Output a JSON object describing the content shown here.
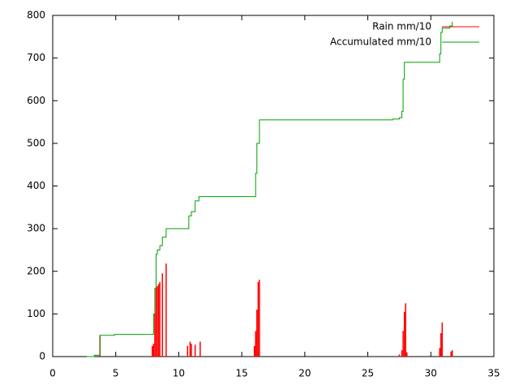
{
  "chart_data": {
    "type": "line",
    "xlim": [
      0,
      35
    ],
    "xticks": [
      0,
      5,
      10,
      15,
      20,
      25,
      30,
      35
    ],
    "ylim": [
      0,
      800
    ],
    "yticks": [
      0,
      100,
      200,
      300,
      400,
      500,
      600,
      700,
      800
    ],
    "legend": "top-right",
    "series": [
      {
        "name": "Rain mm/10",
        "color": "#ff0000",
        "style": "impulses",
        "x": [
          3.75,
          7.9,
          8.0,
          8.1,
          8.2,
          8.3,
          8.4,
          8.5,
          8.7,
          9.0,
          10.7,
          10.9,
          11.0,
          11.3,
          11.7,
          16.0,
          16.1,
          16.2,
          16.3,
          16.4,
          27.5,
          27.7,
          27.8,
          27.9,
          28.0,
          28.1,
          30.7,
          30.8,
          30.9,
          31.6,
          31.7
        ],
        "values": [
          50,
          25,
          30,
          100,
          160,
          165,
          170,
          175,
          195,
          218,
          25,
          35,
          30,
          28,
          35,
          25,
          60,
          110,
          175,
          180,
          5,
          15,
          60,
          105,
          125,
          10,
          20,
          55,
          80,
          12,
          15
        ]
      },
      {
        "name": "Accumulated mm/10",
        "color": "#00a000",
        "style": "steps",
        "x": [
          2.7,
          3.3,
          3.75,
          4.9,
          7.9,
          8.0,
          8.1,
          8.2,
          8.3,
          8.5,
          8.7,
          9.0,
          10.7,
          10.8,
          11.0,
          11.3,
          11.6,
          16.0,
          16.1,
          16.2,
          16.4,
          26.0,
          27.0,
          27.5,
          27.7,
          27.8,
          27.9,
          30.6,
          30.7,
          30.8,
          30.9,
          31.5,
          31.7
        ],
        "values": [
          0,
          3,
          50,
          52,
          52,
          100,
          160,
          240,
          250,
          260,
          280,
          300,
          300,
          330,
          340,
          365,
          375,
          375,
          430,
          500,
          555,
          555,
          557,
          560,
          575,
          650,
          690,
          690,
          710,
          760,
          770,
          775,
          785
        ]
      }
    ]
  }
}
